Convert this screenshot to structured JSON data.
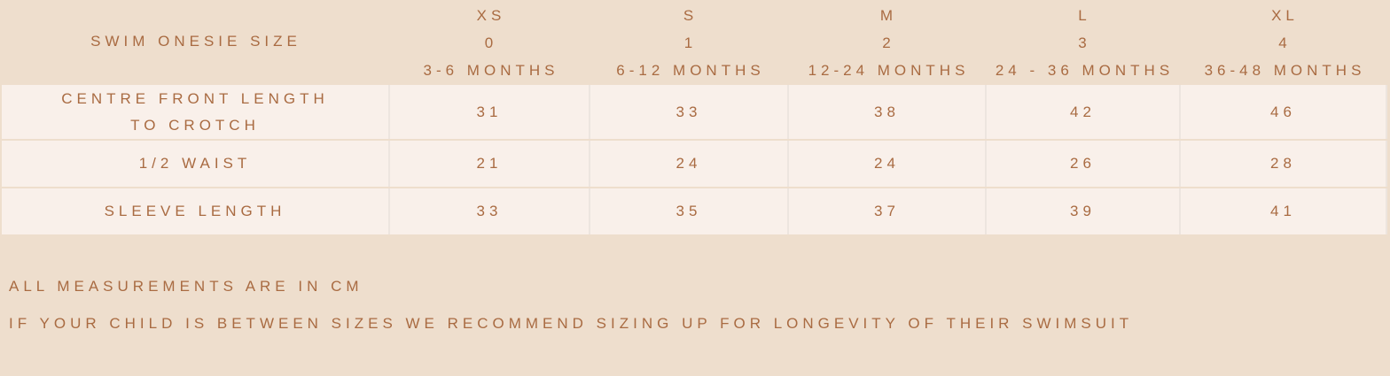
{
  "table": {
    "corner_label": "SWIM ONESIE SIZE",
    "columns": [
      {
        "size": "XS",
        "number": "0",
        "age": "3-6 MONTHS"
      },
      {
        "size": "S",
        "number": "1",
        "age": "6-12 MONTHS"
      },
      {
        "size": "M",
        "number": "2",
        "age": "12-24 MONTHS"
      },
      {
        "size": "L",
        "number": "3",
        "age": "24 - 36 MONTHS"
      },
      {
        "size": "XL",
        "number": "4",
        "age": "36-48 MONTHS"
      }
    ],
    "rows": [
      {
        "label_lines": [
          "CENTRE FRONT LENGTH",
          "TO CROTCH"
        ],
        "values": [
          "31",
          "33",
          "38",
          "42",
          "46"
        ]
      },
      {
        "label_lines": [
          "1/2 WAIST"
        ],
        "values": [
          "21",
          "24",
          "24",
          "26",
          "28"
        ]
      },
      {
        "label_lines": [
          "SLEEVE LENGTH"
        ],
        "values": [
          "33",
          "35",
          "37",
          "39",
          "41"
        ]
      }
    ]
  },
  "notes": [
    "ALL MEASUREMENTS ARE IN CM",
    "IF YOUR CHILD IS BETWEEN SIZES WE RECOMMEND SIZING UP FOR LONGEVITY OF THEIR SWIMSUIT"
  ],
  "colors": {
    "background": "#eedecd",
    "cell": "#f9f0ea",
    "text": "#a96b42"
  }
}
